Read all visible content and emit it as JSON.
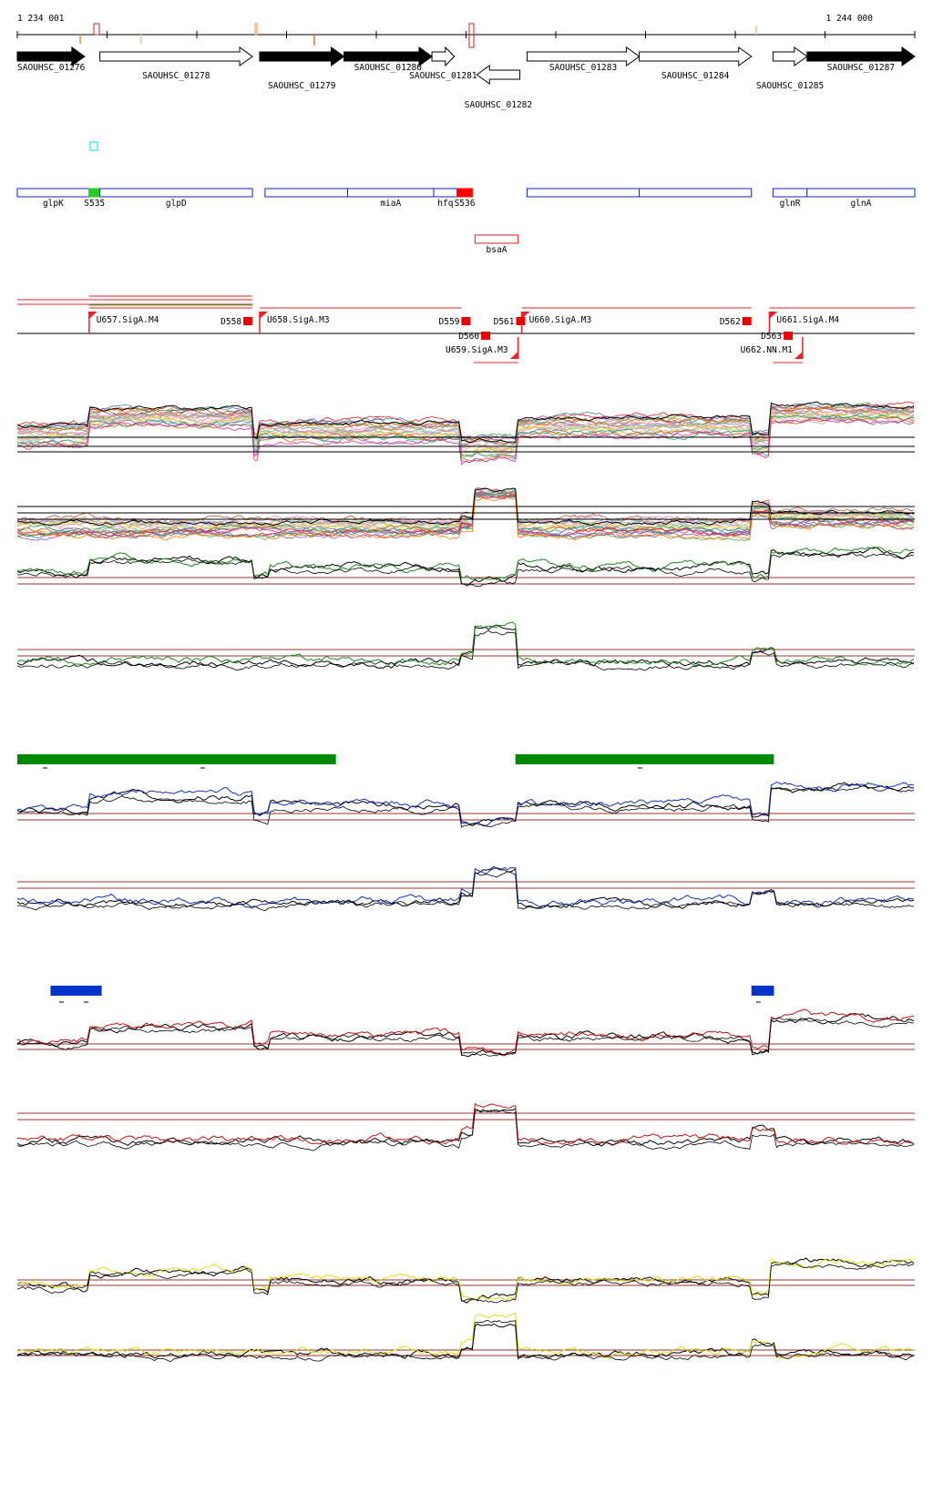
{
  "ruler": {
    "start_label": "1 234 001",
    "end_label": "1 244 000"
  },
  "genes": [
    {
      "label": "SAOUHSC_01276",
      "strand": "+",
      "filled": true,
      "start": 0,
      "end": 75,
      "label_row": 1
    },
    {
      "label": "SAOUHSC_01278",
      "strand": "+",
      "filled": false,
      "start": 92,
      "end": 262,
      "label_row": 2
    },
    {
      "label": "SAOUHSC_01279",
      "strand": "+",
      "filled": true,
      "start": 270,
      "end": 364,
      "label_row": 3
    },
    {
      "label": "SAOUHSC_01280",
      "strand": "+",
      "filled": true,
      "start": 364,
      "end": 462,
      "label_row": 1
    },
    {
      "label": "SAOUHSC_01281",
      "strand": "+",
      "filled": false,
      "start": 462,
      "end": 487,
      "label_row": 2
    },
    {
      "label": "SAOUHSC_01282",
      "strand": "-",
      "filled": false,
      "start": 512,
      "end": 560,
      "label_row": 4
    },
    {
      "label": "SAOUHSC_01283",
      "strand": "+",
      "filled": false,
      "start": 568,
      "end": 693,
      "label_row": 1
    },
    {
      "label": "SAOUHSC_01284",
      "strand": "+",
      "filled": false,
      "start": 693,
      "end": 818,
      "label_row": 2
    },
    {
      "label": "SAOUHSC_01285",
      "strand": "+",
      "filled": false,
      "start": 842,
      "end": 880,
      "label_row": 3
    },
    {
      "label": "SAOUHSC_01287",
      "strand": "+",
      "filled": true,
      "start": 880,
      "end": 1000,
      "label_row": 1
    }
  ],
  "annotations": [
    {
      "label": "glpK",
      "start": 0,
      "end": 80,
      "fill": ""
    },
    {
      "label": "S535",
      "start": 80,
      "end": 92,
      "fill": "#22cc22"
    },
    {
      "label": "glpD",
      "start": 92,
      "end": 262,
      "fill": ""
    },
    {
      "label": "",
      "start": 276,
      "end": 368,
      "fill": ""
    },
    {
      "label": "miaA",
      "start": 368,
      "end": 464,
      "fill": ""
    },
    {
      "label": "hfq",
      "start": 464,
      "end": 490,
      "fill": ""
    },
    {
      "label": "S536",
      "start": 490,
      "end": 507,
      "fill": "#ff0000"
    },
    {
      "label": "",
      "start": 568,
      "end": 693,
      "fill": ""
    },
    {
      "label": "",
      "start": 693,
      "end": 818,
      "fill": ""
    },
    {
      "label": "glnR",
      "start": 842,
      "end": 880,
      "fill": ""
    },
    {
      "label": "glnA",
      "start": 880,
      "end": 1000,
      "fill": ""
    }
  ],
  "antisense": {
    "label": "bsaA",
    "start": 510,
    "end": 558
  },
  "transcription_units": [
    {
      "label": "U657.SigA.M4",
      "start": 80,
      "end": 262,
      "strand": "+"
    },
    {
      "label": "U658.SigA.M3",
      "start": 270,
      "end": 495,
      "strand": "+"
    },
    {
      "label": "U659.SigA.M3",
      "start": 508,
      "end": 558,
      "strand": "-"
    },
    {
      "label": "U660.SigA.M3",
      "start": 562,
      "end": 818,
      "strand": "+"
    },
    {
      "label": "U661.SigA.M4",
      "start": 838,
      "end": 1000,
      "strand": "+"
    },
    {
      "label": "U662.NN.M1",
      "start": 842,
      "end": 875,
      "strand": "-"
    }
  ],
  "downstream_terminators": [
    "D558",
    "D559",
    "D560",
    "D561",
    "D562",
    "D563"
  ],
  "condition_bars": [
    {
      "color": "#008800",
      "start": 0,
      "end": 355
    },
    {
      "color": "#008800",
      "start": 555,
      "end": 843
    },
    {
      "color": "#0033cc",
      "start": 37,
      "end": 94
    },
    {
      "color": "#0033cc",
      "start": 818,
      "end": 843
    }
  ],
  "track_colors": {
    "green": "#1a8a1a",
    "blue": "#1133bb",
    "red": "#cc1111",
    "yellow": "#dddd11",
    "black": "#000000",
    "threshold": "#993333"
  }
}
